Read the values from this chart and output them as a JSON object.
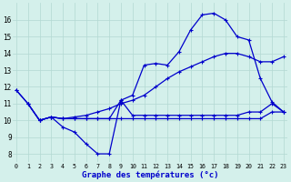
{
  "xlabel": "Graphe des températures (°c)",
  "xlim": [
    -0.3,
    23.3
  ],
  "ylim": [
    7.5,
    17.0
  ],
  "xticks": [
    0,
    1,
    2,
    3,
    4,
    5,
    6,
    7,
    8,
    9,
    10,
    11,
    12,
    13,
    14,
    15,
    16,
    17,
    18,
    19,
    20,
    21,
    22,
    23
  ],
  "yticks": [
    8,
    9,
    10,
    11,
    12,
    13,
    14,
    15,
    16
  ],
  "bg_color": "#d4f0eb",
  "grid_color": "#b2d8d2",
  "line_color": "#0000cc",
  "line1_x": [
    0,
    1,
    2,
    3,
    4,
    5,
    6,
    7,
    8,
    9,
    10,
    11,
    12,
    13,
    14,
    15,
    16,
    17,
    18,
    19,
    20,
    21,
    22,
    23
  ],
  "line1_y": [
    11.8,
    11.0,
    10.0,
    10.2,
    9.6,
    9.3,
    8.6,
    8.0,
    8.0,
    11.2,
    10.3,
    10.3,
    10.3,
    10.3,
    10.3,
    10.3,
    10.3,
    10.3,
    10.3,
    10.3,
    10.5,
    10.5,
    11.0,
    10.5
  ],
  "line2_x": [
    2,
    3,
    4,
    5,
    6,
    7,
    8,
    9,
    10,
    11,
    12,
    13,
    14,
    15,
    16,
    17,
    18,
    19,
    20,
    21,
    22,
    23
  ],
  "line2_y": [
    10.0,
    10.2,
    10.1,
    10.1,
    10.1,
    10.1,
    10.1,
    10.1,
    10.1,
    10.1,
    10.1,
    10.1,
    10.1,
    10.1,
    10.1,
    10.1,
    10.1,
    10.1,
    10.1,
    10.1,
    10.5,
    10.5
  ],
  "line3_x": [
    0,
    1,
    2,
    3,
    4,
    5,
    6,
    7,
    8,
    9,
    10,
    11,
    12,
    13,
    14,
    15,
    16,
    17,
    18,
    19,
    20,
    21,
    22,
    23
  ],
  "line3_y": [
    11.8,
    11.0,
    10.0,
    10.2,
    10.1,
    10.2,
    10.3,
    10.5,
    10.7,
    11.0,
    11.2,
    11.5,
    12.0,
    12.5,
    12.9,
    13.2,
    13.5,
    13.8,
    14.0,
    14.0,
    13.8,
    13.5,
    13.5,
    13.8
  ],
  "line4_x": [
    1,
    2,
    3,
    4,
    5,
    6,
    7,
    8,
    9,
    10,
    11,
    12,
    13,
    14,
    15,
    16,
    17,
    18,
    19,
    20,
    21,
    22,
    23
  ],
  "line4_y": [
    11.0,
    10.0,
    10.2,
    10.1,
    10.1,
    10.1,
    10.1,
    10.1,
    11.2,
    11.5,
    13.3,
    13.4,
    13.3,
    14.1,
    15.4,
    16.3,
    16.4,
    16.0,
    15.0,
    14.8,
    12.5,
    11.1,
    10.5
  ]
}
